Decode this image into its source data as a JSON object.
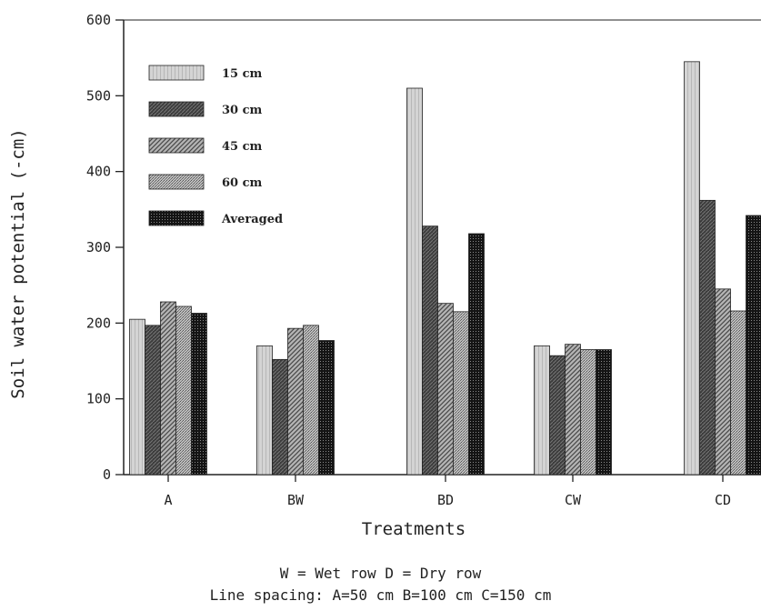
{
  "chart_data": {
    "type": "bar",
    "categories": [
      "A",
      "BW",
      "BD",
      "CW",
      "CD"
    ],
    "series": [
      {
        "name": "15 cm",
        "values": [
          205,
          170,
          510,
          170,
          545
        ]
      },
      {
        "name": "30 cm",
        "values": [
          197,
          152,
          328,
          157,
          362
        ]
      },
      {
        "name": "45 cm",
        "values": [
          228,
          193,
          226,
          172,
          245
        ]
      },
      {
        "name": "60 cm",
        "values": [
          222,
          197,
          215,
          165,
          216
        ]
      },
      {
        "name": "Averaged",
        "values": [
          213,
          177,
          318,
          165,
          342
        ]
      }
    ],
    "title": "",
    "xlabel": "Treatments",
    "ylabel": "Soil water potential (-cm)",
    "ylim": [
      0,
      600
    ],
    "yticks": [
      0,
      100,
      200,
      300,
      400,
      500,
      600
    ],
    "legend": "top-left",
    "grid": false,
    "series_colors": [
      "#c9c9c9",
      "#3a3a3a",
      "#8a8a8a",
      "#a8a8a8",
      "#1a1a1a"
    ],
    "notes": [
      "W = Wet row  D = Dry row",
      "Line spacing: A=50 cm B=100 cm C=150 cm"
    ]
  }
}
